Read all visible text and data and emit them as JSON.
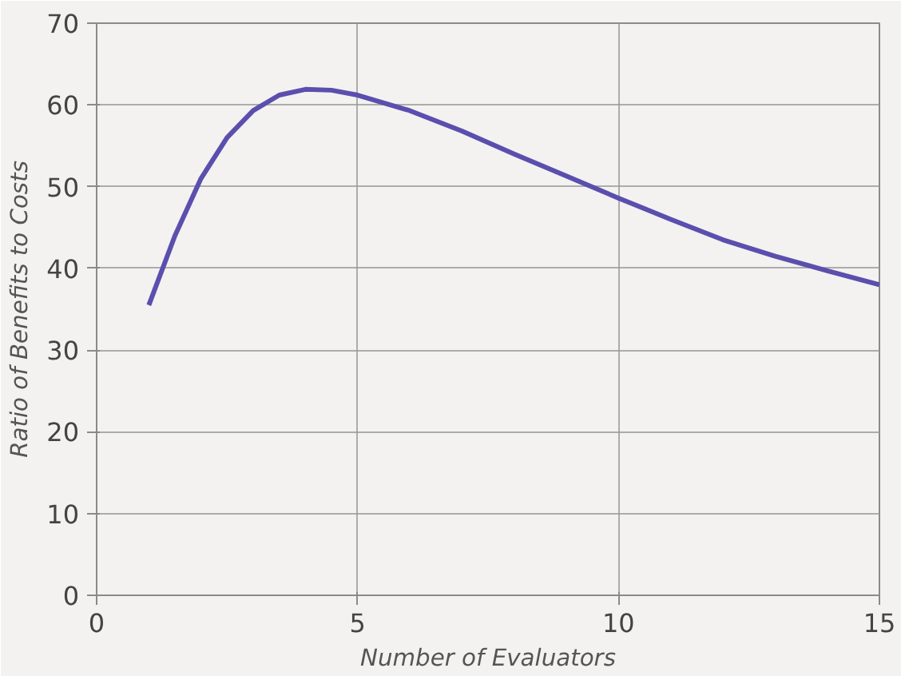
{
  "chart_data": {
    "type": "line",
    "xlabel": "Number of Evaluators",
    "ylabel": "Ratio of Benefits to Costs",
    "x": [
      1,
      1.5,
      2,
      2.5,
      3,
      3.5,
      4,
      4.5,
      5,
      6,
      7,
      8,
      9,
      10,
      11,
      12,
      13,
      14,
      15
    ],
    "series": [
      {
        "color": "#5a4fae",
        "values": [
          35.5,
          44,
          51,
          56,
          59.3,
          61.2,
          61.9,
          61.8,
          61.2,
          59.3,
          56.8,
          54,
          51.3,
          48.6,
          46,
          43.5,
          41.5,
          39.7,
          38
        ]
      }
    ],
    "xlim": [
      0,
      15
    ],
    "xticks": [
      0,
      5,
      10,
      15
    ],
    "ylim": [
      0,
      70
    ],
    "yticks": [
      0,
      10,
      20,
      30,
      40,
      50,
      60,
      70
    ],
    "grid": true,
    "marker": "none",
    "line_style": "solid"
  }
}
